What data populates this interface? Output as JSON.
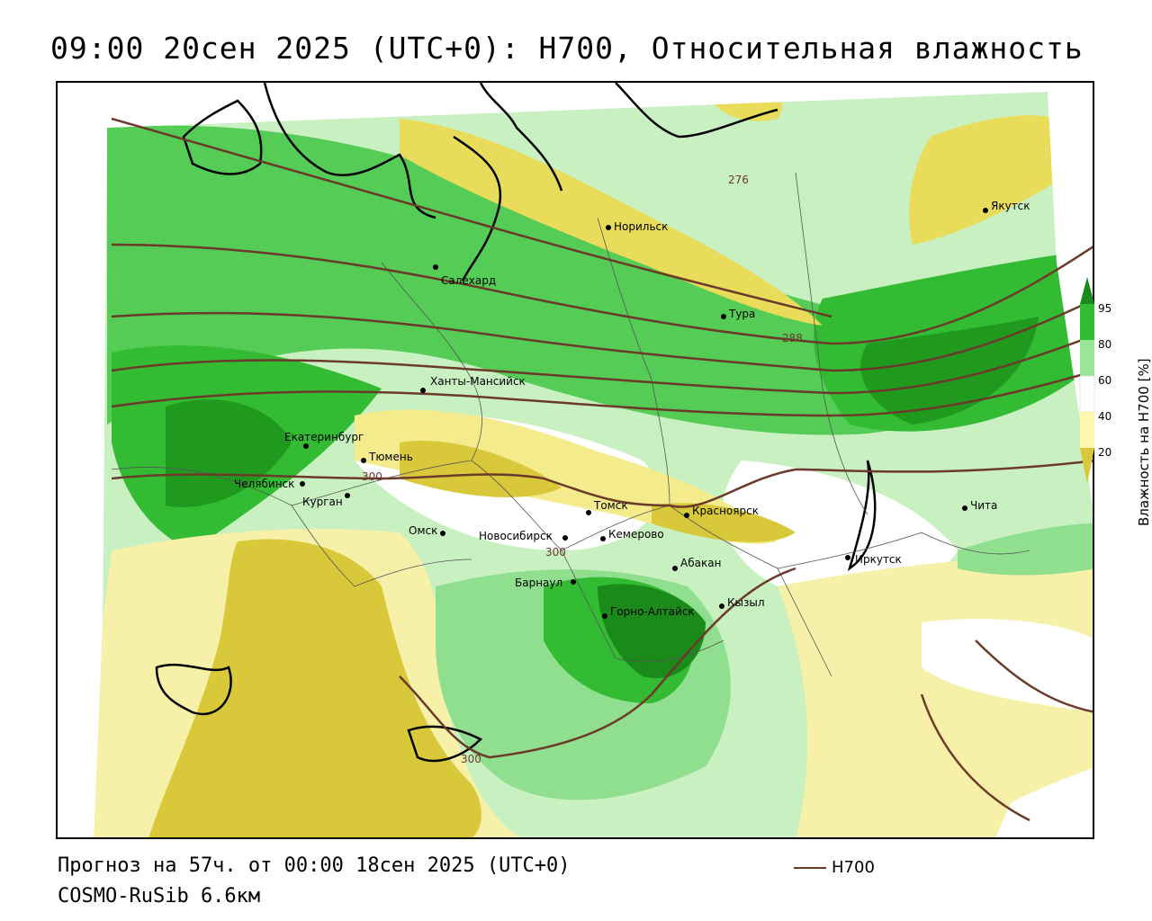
{
  "title": "09:00 20сен 2025 (UTC+0): H700, Относительная влажность",
  "forecast_line": "Прогноз на 57ч. от 00:00 18сен 2025 (UTC+0)",
  "model_line": "COSMO-RuSib 6.6км",
  "legend_series": "H700",
  "colorbar": {
    "title": "Влажность на H700 [%]",
    "ticks": [
      "95",
      "80",
      "60",
      "40",
      "20"
    ],
    "colors": {
      "c95": "#1a8a1a",
      "c80": "#33bb33",
      "c60": "#99e699",
      "c40": "#ffffff",
      "c20": "#fff7b0",
      "c0": "#d9c93a"
    }
  },
  "contour_labels": [
    "276",
    "288",
    "300",
    "300",
    "300"
  ],
  "cities": [
    {
      "name": "Норильск"
    },
    {
      "name": "Якутск"
    },
    {
      "name": "Салехард"
    },
    {
      "name": "Тура"
    },
    {
      "name": "Ханты-Мансийск"
    },
    {
      "name": "Екатеринбург"
    },
    {
      "name": "Тюмень"
    },
    {
      "name": "Челябинск"
    },
    {
      "name": "Курган"
    },
    {
      "name": "Омск"
    },
    {
      "name": "Новосибирск"
    },
    {
      "name": "Томск"
    },
    {
      "name": "Кемерово"
    },
    {
      "name": "Красноярск"
    },
    {
      "name": "Барнаул"
    },
    {
      "name": "Абакан"
    },
    {
      "name": "Горно-Алтайск"
    },
    {
      "name": "Кызыл"
    },
    {
      "name": "Иркутск"
    },
    {
      "name": "Чита"
    }
  ]
}
